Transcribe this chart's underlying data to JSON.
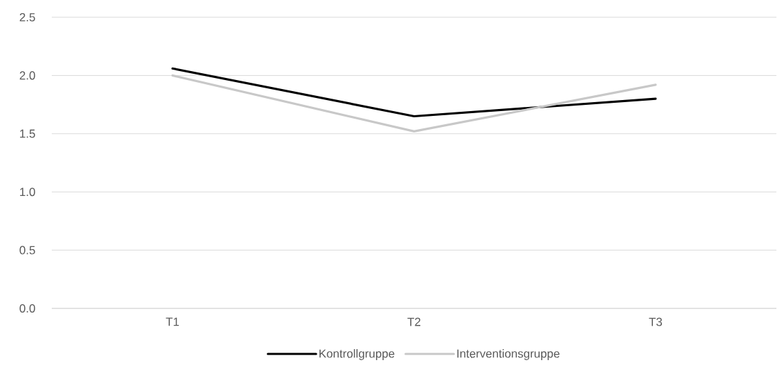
{
  "chart_data": {
    "type": "line",
    "categories": [
      "T1",
      "T2",
      "T3"
    ],
    "series": [
      {
        "name": "Kontrollgruppe",
        "color": "#000000",
        "values": [
          2.06,
          1.65,
          1.8
        ]
      },
      {
        "name": "Interventionsgruppe",
        "color": "#c8c8c8",
        "values": [
          2.0,
          1.52,
          1.92
        ]
      }
    ],
    "ylim": [
      0,
      2.5
    ],
    "yticks": [
      {
        "value": 0,
        "label": "0.0"
      },
      {
        "value": 0.5,
        "label": "0.5"
      },
      {
        "value": 1,
        "label": "1.0"
      },
      {
        "value": 1.5,
        "label": "1.5"
      },
      {
        "value": 2,
        "label": "2.0"
      },
      {
        "value": 2.5,
        "label": "2.5"
      }
    ],
    "grid": "y",
    "legend": "bottom",
    "marker": "none",
    "line_style": "solid"
  }
}
